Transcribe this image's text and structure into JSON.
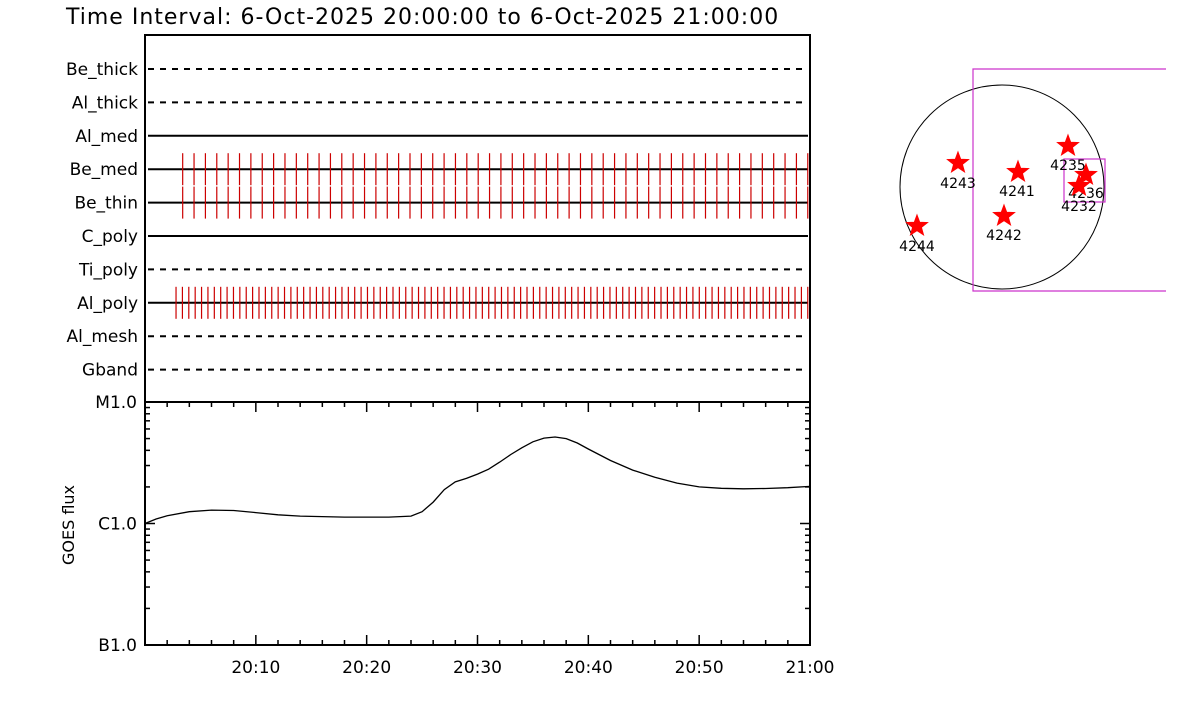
{
  "title": "Time Interval:  6-Oct-2025 20:00:00 to  6-Oct-2025 21:00:00",
  "chart_data": [
    {
      "type": "timeline",
      "name_hidden": "",
      "channels": [
        {
          "label": "Be_thick",
          "style": "dashed",
          "exposures": []
        },
        {
          "label": "Al_thick",
          "style": "dashed",
          "exposures": []
        },
        {
          "label": "Al_med",
          "style": "solid",
          "exposures": []
        },
        {
          "label": "Be_med",
          "style": "solid",
          "exposures": {
            "start_min": 3.4,
            "end_min": 59.8,
            "count": 56
          }
        },
        {
          "label": "Be_thin",
          "style": "solid",
          "exposures": {
            "start_min": 3.4,
            "end_min": 59.8,
            "count": 56
          }
        },
        {
          "label": "C_poly",
          "style": "solid",
          "exposures": []
        },
        {
          "label": "Ti_poly",
          "style": "dashed",
          "exposures": []
        },
        {
          "label": "Al_poly",
          "style": "solid",
          "exposures": {
            "start_min": 2.8,
            "end_min": 59.8,
            "count": 100
          }
        },
        {
          "label": "Al_mesh",
          "style": "dashed",
          "exposures": []
        },
        {
          "label": "Gband",
          "style": "dashed",
          "exposures": []
        }
      ],
      "xlim_min": [
        0,
        60
      ]
    },
    {
      "type": "line",
      "ylabel": "GOES flux",
      "ylog": true,
      "ylim": [
        1e-07,
        1e-05
      ],
      "yticks": [
        {
          "label": "B1.0",
          "value": 1e-07
        },
        {
          "label": "C1.0",
          "value": 1e-06
        },
        {
          "label": "M1.0",
          "value": 1e-05
        }
      ],
      "xticks": [
        "20:10",
        "20:20",
        "20:30",
        "20:40",
        "20:50",
        "21:00"
      ],
      "xtick_minutes": [
        10,
        20,
        30,
        40,
        50,
        60
      ],
      "xlim_min": [
        0,
        60
      ],
      "series": [
        {
          "x_min": [
            0,
            1,
            2,
            4,
            6,
            8,
            10,
            12,
            14,
            16,
            18,
            20,
            22,
            24,
            25,
            26,
            27,
            28,
            29,
            30,
            31,
            32,
            33,
            34,
            35,
            36,
            37,
            38,
            39,
            40,
            42,
            44,
            46,
            48,
            50,
            52,
            54,
            56,
            58,
            60
          ],
          "y": [
            1e-06,
            1.09e-06,
            1.16e-06,
            1.25e-06,
            1.29e-06,
            1.28e-06,
            1.23e-06,
            1.18e-06,
            1.15e-06,
            1.14e-06,
            1.13e-06,
            1.13e-06,
            1.13e-06,
            1.15e-06,
            1.25e-06,
            1.5e-06,
            1.9e-06,
            2.2e-06,
            2.35e-06,
            2.55e-06,
            2.8e-06,
            3.2e-06,
            3.7e-06,
            4.2e-06,
            4.7e-06,
            5.05e-06,
            5.15e-06,
            5e-06,
            4.6e-06,
            4.1e-06,
            3.3e-06,
            2.75e-06,
            2.4e-06,
            2.15e-06,
            2e-06,
            1.95e-06,
            1.93e-06,
            1.94e-06,
            1.97e-06,
            2.02e-06
          ]
        }
      ]
    }
  ],
  "sun_map": {
    "regions": [
      {
        "label": "4243"
      },
      {
        "label": "4241"
      },
      {
        "label": "4235"
      },
      {
        "label": "4236"
      },
      {
        "label": "4232"
      },
      {
        "label": "4242"
      },
      {
        "label": "4244"
      }
    ],
    "colors": {
      "star": "#ff0000",
      "box": "#cc33cc",
      "disk": "#000000",
      "exposure": "#cc0000"
    }
  }
}
